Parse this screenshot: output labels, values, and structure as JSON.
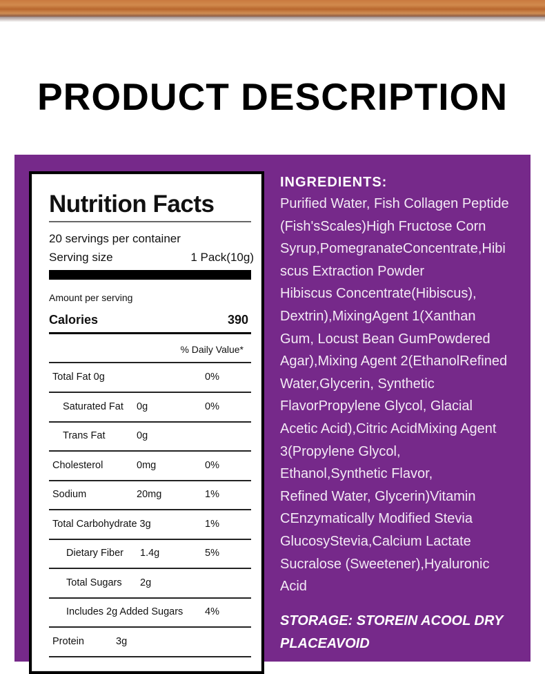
{
  "page_title": "PRODUCT DESCRIPTION",
  "colors": {
    "panel": "#76298a",
    "text_on_panel": "#ffffff"
  },
  "nutrition": {
    "title": "Nutrition Facts",
    "servings": "20 servings per container",
    "serving_size_label": "Serving size",
    "serving_size_value": "1 Pack(10g)",
    "amount_per_serving": "Amount per serving",
    "calories_label": "Calories",
    "calories_value": "390",
    "daily_value_header": "% Daily Value*",
    "rows": [
      {
        "name": "Total Fat 0g",
        "amount": "",
        "dv": "0%"
      },
      {
        "name": "Saturated Fat",
        "amount": "0g",
        "dv": "0%"
      },
      {
        "name": "Trans Fat",
        "amount": "0g",
        "dv": ""
      },
      {
        "name": "Cholesterol",
        "amount": "0mg",
        "dv": "0%"
      },
      {
        "name": "Sodium",
        "amount": "20mg",
        "dv": "1%"
      },
      {
        "name": "Total Carbohydrate 3g",
        "amount": "",
        "dv": "1%"
      },
      {
        "name": "Dietary Fiber",
        "amount": "1.4g",
        "dv": "5%"
      },
      {
        "name": "Total Sugars",
        "amount": "2g",
        "dv": ""
      },
      {
        "name": "Includes 2g Added Sugars",
        "amount": "",
        "dv": "4%"
      },
      {
        "name": "Protein",
        "amount": "3g",
        "dv": ""
      }
    ]
  },
  "ingredients": {
    "heading": "INGREDIENTS:",
    "lines": [
      "Purified Water, Fish Collagen Peptide",
      "(Fish'sScales)High Fructose Corn",
      "Syrup,PomegranateConcentrate,Hibi",
      "scus Extraction Powder",
      "Hibiscus Concentrate(Hibiscus),",
      "Dextrin),MixingAgent 1(Xanthan",
      "Gum, Locust Bean GumPowdered",
      "Agar),Mixing Agent 2(EthanolRefined",
      "Water,Glycerin, Synthetic",
      "FlavorPropylene Glycol, Glacial",
      "Acetic Acid),Citric AcidMixing Agent",
      "3(Propylene Glycol,",
      "Ethanol,Synthetic Flavor,",
      "Refined Water, Glycerin)Vitamin",
      "CEnzymatically Modified Stevia",
      "GlucosyStevia,Calcium Lactate",
      "Sucralose (Sweetener),Hyaluronic",
      "Acid"
    ]
  },
  "storage": {
    "lines": [
      "STORAGE: STOREIN ACOOL DRY",
      "PLACEAVOID"
    ]
  }
}
